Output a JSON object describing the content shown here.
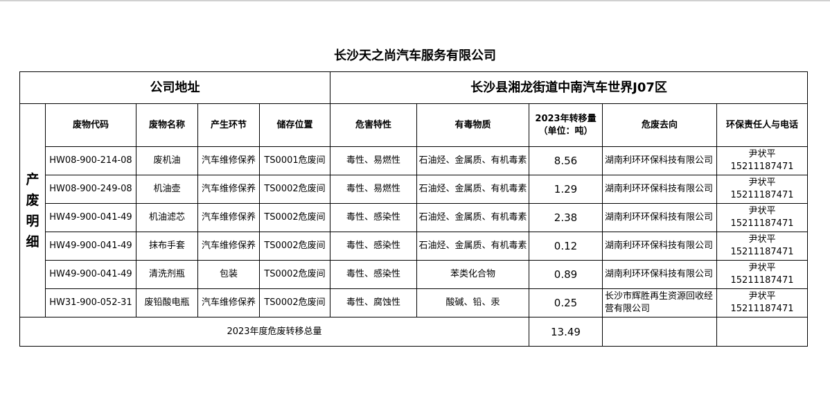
{
  "title": "长沙天之尚汽车服务有限公司",
  "address_label": "公司地址",
  "address_value": "长沙县湘龙街道中南汽车世界J07区",
  "section_label": "产废明细",
  "headers": [
    "废物代码",
    "废物名称",
    "产生环节",
    "储存位置",
    "危害特性",
    "有毒物质",
    "2023年转移量（单位：吨）",
    "危废去向",
    "环保责任人与电话"
  ],
  "rows": [
    {
      "code": "HW08-900-214-08",
      "name": "废机油",
      "stage": "汽车维修保养",
      "storage": "TS0001危废间",
      "hazard": "毒性、易燃性",
      "toxic": "石油烃、金属质、有机毒素",
      "amount": "8.56",
      "dest": "湖南利环环保科技有限公司",
      "person": "尹状平",
      "phone": "15211187471"
    },
    {
      "code": "HW08-900-249-08",
      "name": "机油壶",
      "stage": "汽车维修保养",
      "storage": "TS0002危废间",
      "hazard": "毒性、易燃性",
      "toxic": "石油烃、金属质、有机毒素",
      "amount": "1.29",
      "dest": "湖南利环环保科技有限公司",
      "person": "尹状平",
      "phone": "15211187471"
    },
    {
      "code": "HW49-900-041-49",
      "name": "机油滤芯",
      "stage": "汽车维修保养",
      "storage": "TS0002危废间",
      "hazard": "毒性、感染性",
      "toxic": "石油烃、金属质、有机毒素",
      "amount": "2.38",
      "dest": "湖南利环环保科技有限公司",
      "person": "尹状平",
      "phone": "15211187471"
    },
    {
      "code": "HW49-900-041-49",
      "name": "抹布手套",
      "stage": "汽车维修保养",
      "storage": "TS0002危废间",
      "hazard": "毒性、感染性",
      "toxic": "石油烃、金属质、有机毒素",
      "amount": "0.12",
      "dest": "湖南利环环保科技有限公司",
      "person": "尹状平",
      "phone": "15211187471"
    },
    {
      "code": "HW49-900-041-49",
      "name": "清洗剂瓶",
      "stage": "包装",
      "storage": "TS0002危废间",
      "hazard": "毒性、感染性",
      "toxic": "苯类化合物",
      "amount": "0.89",
      "dest": "湖南利环环保科技有限公司",
      "person": "尹状平",
      "phone": "15211187471"
    },
    {
      "code": "HW31-900-052-31",
      "name": "废铅酸电瓶",
      "stage": "汽车维修保养",
      "storage": "TS0002危废间",
      "hazard": "毒性、腐蚀性",
      "toxic": "酸碱、铅、汞",
      "amount": "0.25",
      "dest": "长沙市辉胜再生资源回收经营有限公司",
      "person": "尹状平",
      "phone": "15211187471"
    }
  ],
  "total_label": "2023年度危废转移总量",
  "total_value": "13.49"
}
